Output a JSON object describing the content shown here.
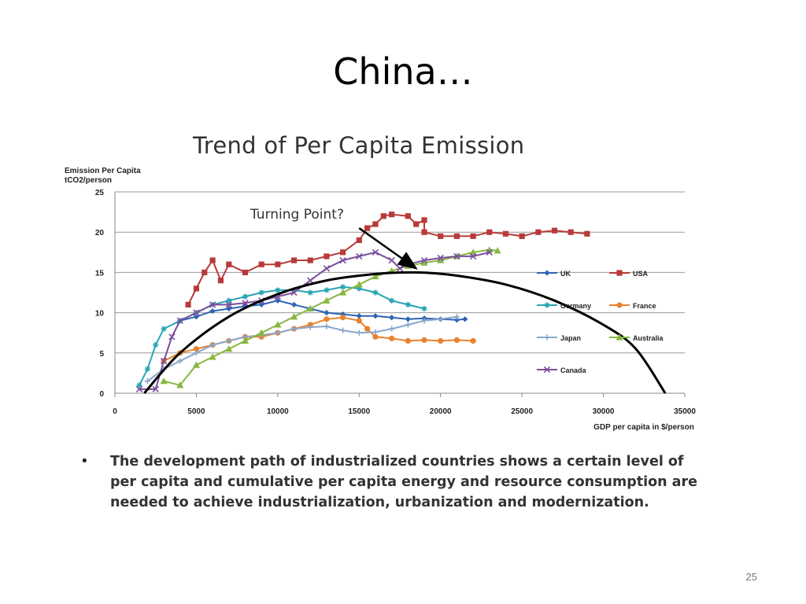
{
  "slide": {
    "title": "China…",
    "bullet_text": "The development path of industrialized countries shows a certain level of per capita and cumulative per capita energy and resource consumption are needed to achieve industrialization, urbanization and modernization.",
    "page_number": "25"
  },
  "chart_data": {
    "type": "line",
    "title": "Trend of Per Capita Emission",
    "ylabel_lines": [
      "Emission Per Capita",
      "tCO2/person"
    ],
    "xlabel": "GDP per capita in $/person",
    "xlim": [
      0,
      35000
    ],
    "ylim": [
      0,
      25
    ],
    "xticks": [
      0,
      5000,
      10000,
      15000,
      20000,
      25000,
      30000,
      35000
    ],
    "yticks": [
      0,
      5,
      10,
      15,
      20,
      25
    ],
    "grid": "horizontal",
    "legend_position": "right",
    "annotation": {
      "text": "Turning Point?",
      "arrow_from": [
        15000,
        20.5
      ],
      "arrow_to": [
        18500,
        15.5
      ]
    },
    "trend_curve": [
      [
        1800,
        0
      ],
      [
        4000,
        5
      ],
      [
        7000,
        9.5
      ],
      [
        10000,
        12.3
      ],
      [
        13000,
        14
      ],
      [
        16000,
        14.8
      ],
      [
        18500,
        15
      ],
      [
        21000,
        14.6
      ],
      [
        24000,
        13.5
      ],
      [
        27000,
        11.5
      ],
      [
        30000,
        8.5
      ],
      [
        32000,
        5.5
      ],
      [
        33800,
        0
      ]
    ],
    "series": [
      {
        "name": "UK",
        "color": "#2e64b4",
        "marker": "diamond",
        "points": [
          [
            4000,
            9
          ],
          [
            5000,
            9.5
          ],
          [
            6000,
            10.2
          ],
          [
            7000,
            10.5
          ],
          [
            8000,
            10.8
          ],
          [
            9000,
            11
          ],
          [
            10000,
            11.5
          ],
          [
            11000,
            11
          ],
          [
            12000,
            10.5
          ],
          [
            13000,
            10
          ],
          [
            14000,
            9.8
          ],
          [
            15000,
            9.6
          ],
          [
            16000,
            9.6
          ],
          [
            17000,
            9.4
          ],
          [
            18000,
            9.2
          ],
          [
            19000,
            9.3
          ],
          [
            20000,
            9.2
          ],
          [
            21000,
            9.1
          ],
          [
            21500,
            9.2
          ]
        ]
      },
      {
        "name": "USA",
        "color": "#b83a3a",
        "marker": "square",
        "points": [
          [
            4500,
            11
          ],
          [
            5000,
            13
          ],
          [
            5500,
            15
          ],
          [
            6000,
            16.5
          ],
          [
            6500,
            14
          ],
          [
            7000,
            16
          ],
          [
            8000,
            15
          ],
          [
            9000,
            16
          ],
          [
            10000,
            16
          ],
          [
            11000,
            16.5
          ],
          [
            12000,
            16.5
          ],
          [
            13000,
            17
          ],
          [
            14000,
            17.5
          ],
          [
            15000,
            19
          ],
          [
            15500,
            20.5
          ],
          [
            16000,
            21
          ],
          [
            16500,
            22
          ],
          [
            17000,
            22.2
          ],
          [
            18000,
            22
          ],
          [
            18500,
            21
          ],
          [
            19000,
            21.5
          ],
          [
            19000,
            20
          ],
          [
            20000,
            19.5
          ],
          [
            21000,
            19.5
          ],
          [
            22000,
            19.5
          ],
          [
            23000,
            20
          ],
          [
            24000,
            19.8
          ],
          [
            25000,
            19.5
          ],
          [
            26000,
            20
          ],
          [
            27000,
            20.2
          ],
          [
            28000,
            20
          ],
          [
            29000,
            19.8
          ]
        ]
      },
      {
        "name": "Germany",
        "color": "#2aa4b4",
        "marker": "star",
        "points": [
          [
            1500,
            1
          ],
          [
            2000,
            3
          ],
          [
            2500,
            6
          ],
          [
            3000,
            8
          ],
          [
            4000,
            9
          ],
          [
            5000,
            10
          ],
          [
            6000,
            11
          ],
          [
            7000,
            11.5
          ],
          [
            8000,
            12
          ],
          [
            9000,
            12.5
          ],
          [
            10000,
            12.8
          ],
          [
            11000,
            12.8
          ],
          [
            12000,
            12.5
          ],
          [
            13000,
            12.8
          ],
          [
            14000,
            13.2
          ],
          [
            15000,
            13
          ],
          [
            16000,
            12.5
          ],
          [
            17000,
            11.5
          ],
          [
            18000,
            11
          ],
          [
            19000,
            10.5
          ]
        ]
      },
      {
        "name": "France",
        "color": "#e8822e",
        "marker": "circle",
        "points": [
          [
            3000,
            4
          ],
          [
            4000,
            5
          ],
          [
            5000,
            5.5
          ],
          [
            6000,
            6
          ],
          [
            7000,
            6.5
          ],
          [
            8000,
            7
          ],
          [
            9000,
            7
          ],
          [
            10000,
            7.5
          ],
          [
            11000,
            8
          ],
          [
            12000,
            8.5
          ],
          [
            13000,
            9.2
          ],
          [
            14000,
            9.4
          ],
          [
            15000,
            9
          ],
          [
            15500,
            8
          ],
          [
            16000,
            7
          ],
          [
            17000,
            6.8
          ],
          [
            18000,
            6.5
          ],
          [
            19000,
            6.6
          ],
          [
            20000,
            6.5
          ],
          [
            21000,
            6.6
          ],
          [
            22000,
            6.5
          ]
        ]
      },
      {
        "name": "Japan",
        "color": "#8aa6cc",
        "marker": "plus",
        "points": [
          [
            2000,
            1.5
          ],
          [
            3000,
            3
          ],
          [
            4000,
            4
          ],
          [
            5000,
            5
          ],
          [
            6000,
            6
          ],
          [
            7000,
            6.5
          ],
          [
            8000,
            7
          ],
          [
            9000,
            7.2
          ],
          [
            10000,
            7.5
          ],
          [
            11000,
            8
          ],
          [
            12000,
            8.2
          ],
          [
            13000,
            8.3
          ],
          [
            14000,
            7.8
          ],
          [
            15000,
            7.5
          ],
          [
            16000,
            7.6
          ],
          [
            17000,
            8
          ],
          [
            18000,
            8.5
          ],
          [
            19000,
            9
          ],
          [
            20000,
            9.2
          ],
          [
            21000,
            9.5
          ]
        ]
      },
      {
        "name": "Australia",
        "color": "#86b840",
        "marker": "triangle",
        "points": [
          [
            3000,
            1.5
          ],
          [
            4000,
            1
          ],
          [
            5000,
            3.5
          ],
          [
            6000,
            4.5
          ],
          [
            7000,
            5.5
          ],
          [
            8000,
            6.5
          ],
          [
            9000,
            7.5
          ],
          [
            10000,
            8.5
          ],
          [
            11000,
            9.5
          ],
          [
            12000,
            10.5
          ],
          [
            13000,
            11.5
          ],
          [
            14000,
            12.5
          ],
          [
            15000,
            13.5
          ],
          [
            16000,
            14.5
          ],
          [
            17000,
            15.2
          ],
          [
            18000,
            15.8
          ],
          [
            19000,
            16.2
          ],
          [
            20000,
            16.5
          ],
          [
            21000,
            17
          ],
          [
            22000,
            17.5
          ],
          [
            23000,
            17.8
          ],
          [
            23500,
            17.7
          ]
        ]
      },
      {
        "name": "Canada",
        "color": "#7a4e9c",
        "marker": "x",
        "points": [
          [
            1500,
            0.5
          ],
          [
            2500,
            0.5
          ],
          [
            3000,
            4
          ],
          [
            3500,
            7
          ],
          [
            4000,
            9
          ],
          [
            5000,
            10
          ],
          [
            6000,
            11
          ],
          [
            7000,
            11
          ],
          [
            8000,
            11.2
          ],
          [
            9000,
            11.5
          ],
          [
            10000,
            12
          ],
          [
            11000,
            12.5
          ],
          [
            12000,
            14
          ],
          [
            13000,
            15.5
          ],
          [
            14000,
            16.5
          ],
          [
            15000,
            17
          ],
          [
            16000,
            17.5
          ],
          [
            17000,
            16.5
          ],
          [
            17500,
            15.5
          ],
          [
            18000,
            16
          ],
          [
            19000,
            16.5
          ],
          [
            20000,
            16.8
          ],
          [
            21000,
            17
          ],
          [
            22000,
            17
          ],
          [
            23000,
            17.5
          ]
        ]
      }
    ]
  }
}
